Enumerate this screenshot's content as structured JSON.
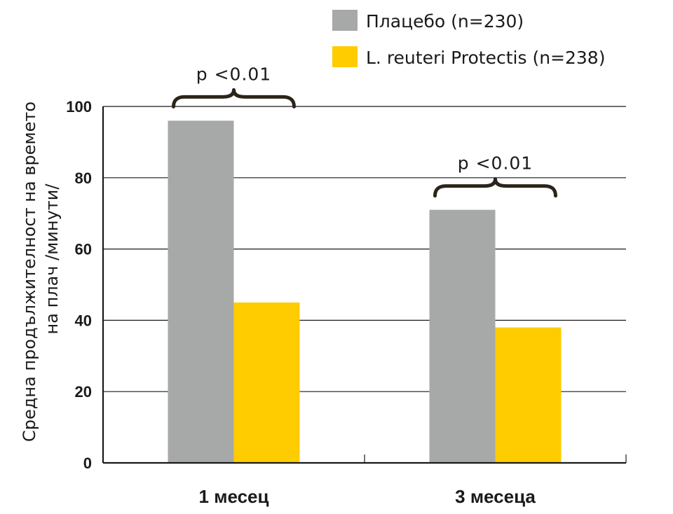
{
  "chart_data": {
    "type": "bar",
    "categories": [
      "1 месец",
      "3 месеца"
    ],
    "series": [
      {
        "name": "Плацебо (n=230)",
        "values": [
          96,
          71
        ],
        "color": "#a7a9a9"
      },
      {
        "name": "L. reuteri Protectis (n=238)",
        "values": [
          45,
          38
        ],
        "color": "#ffcc00"
      }
    ],
    "ylabel_line1": "Средна продължителност на времето",
    "ylabel_line2": "на плач /минути/",
    "ylim": [
      0,
      100
    ],
    "yticks": [
      0,
      20,
      40,
      60,
      80,
      100
    ],
    "grid": true,
    "legend_position": "top-right",
    "annotations": [
      {
        "text": "p <0.01",
        "category_index": 0,
        "over_value": 96
      },
      {
        "text": "p <0.01",
        "category_index": 1,
        "over_value": 71
      }
    ]
  }
}
